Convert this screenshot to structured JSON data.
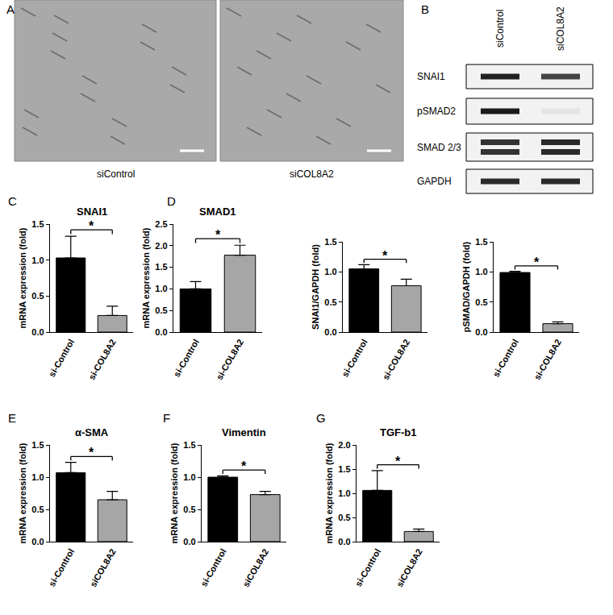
{
  "panel_labels": [
    "A",
    "B",
    "C",
    "D",
    "E",
    "F",
    "G"
  ],
  "micrographs": {
    "captions": [
      "siControl",
      "siCOL8A2"
    ]
  },
  "western_blot": {
    "lanes": [
      "siControl",
      "siCOL8A2"
    ],
    "rows": [
      "SNAI1",
      "pSMAD2",
      "SMAD 2/3",
      "GAPDH"
    ]
  },
  "chart_data": [
    {
      "type": "bar",
      "title": "SNAI1",
      "y_label": "mRNA expression (fold)",
      "categories": [
        "si-Control",
        "si-COL8A2"
      ],
      "values": [
        1.03,
        0.23
      ],
      "errors": [
        0.3,
        0.13
      ],
      "colors": [
        "#000000",
        "#a6a6a6"
      ],
      "ylim": [
        0,
        1.5
      ],
      "yticks": [
        {
          "value": 0,
          "label": "0.0"
        },
        0.5,
        {
          "value": 1,
          "label": "1.0"
        },
        1.5
      ],
      "grid": false,
      "significance": "*"
    },
    {
      "type": "bar",
      "title": "SMAD1",
      "y_label": "mRNA expression (fold)",
      "categories": [
        "si-Control",
        "si-COL8A2"
      ],
      "values": [
        1.0,
        1.78
      ],
      "errors": [
        0.17,
        0.23
      ],
      "colors": [
        "#000000",
        "#a6a6a6"
      ],
      "ylim": [
        0,
        2.5
      ],
      "yticks": [
        {
          "value": 0,
          "label": "0.0"
        },
        0.5,
        {
          "value": 1,
          "label": "1.0"
        },
        1.5,
        {
          "value": 2,
          "label": "2.0"
        },
        2.5
      ],
      "grid": false,
      "significance": "*"
    },
    {
      "type": "bar",
      "y_label": "SNAI1/GAPDH (fold)",
      "categories": [
        "si-Control",
        "si-COL8A2"
      ],
      "values": [
        1.05,
        0.77
      ],
      "errors": [
        0.07,
        0.11
      ],
      "colors": [
        "#000000",
        "#a6a6a6"
      ],
      "ylim": [
        0,
        1.5
      ],
      "yticks": [
        {
          "value": 0,
          "label": "0.0"
        },
        0.5,
        {
          "value": 1,
          "label": "1.0"
        },
        1.5
      ],
      "grid": false,
      "significance": "*"
    },
    {
      "type": "bar",
      "y_label": "pSMAD/GAPDH (fold)",
      "categories": [
        "si-Control",
        "si-COL8A2"
      ],
      "values": [
        0.99,
        0.14
      ],
      "errors": [
        0.02,
        0.03
      ],
      "colors": [
        "#000000",
        "#a6a6a6"
      ],
      "ylim": [
        0,
        1.5
      ],
      "yticks": [
        {
          "value": 0,
          "label": "0.0"
        },
        0.5,
        {
          "value": 1,
          "label": "1.0"
        },
        1.5
      ],
      "grid": false,
      "significance": "*"
    },
    {
      "type": "bar",
      "title": "α-SMA",
      "y_label": "mRNA expression (fold)",
      "categories": [
        "si-Control",
        "siCOL8A2"
      ],
      "values": [
        1.07,
        0.65
      ],
      "errors": [
        0.16,
        0.13
      ],
      "colors": [
        "#000000",
        "#a6a6a6"
      ],
      "ylim": [
        0,
        1.5
      ],
      "yticks": [
        {
          "value": 0,
          "label": "0.0"
        },
        0.5,
        {
          "value": 1,
          "label": "1.0"
        },
        1.5
      ],
      "grid": false,
      "significance": "*"
    },
    {
      "type": "bar",
      "title": "Vimentin",
      "y_label": "mRNA expression (fold)",
      "categories": [
        "si-Control",
        "siCOL8A2"
      ],
      "values": [
        1.0,
        0.73
      ],
      "errors": [
        0.02,
        0.05
      ],
      "colors": [
        "#000000",
        "#a6a6a6"
      ],
      "ylim": [
        0,
        1.5
      ],
      "yticks": [
        {
          "value": 0,
          "label": "0.0"
        },
        0.5,
        {
          "value": 1,
          "label": "1.0"
        },
        1.5
      ],
      "grid": false,
      "significance": "*"
    },
    {
      "type": "bar",
      "title": "TGF-b1",
      "y_label": "mRNA expression (fold)",
      "categories": [
        "si-Control",
        "siCOL8A2"
      ],
      "values": [
        1.06,
        0.21
      ],
      "errors": [
        0.41,
        0.05
      ],
      "colors": [
        "#000000",
        "#a6a6a6"
      ],
      "ylim": [
        0,
        2.0
      ],
      "yticks": [
        {
          "value": 0,
          "label": "0.0"
        },
        0.5,
        {
          "value": 1,
          "label": "1.0"
        },
        1.5,
        {
          "value": 2,
          "label": "2.0"
        }
      ],
      "grid": false,
      "significance": "*"
    }
  ]
}
